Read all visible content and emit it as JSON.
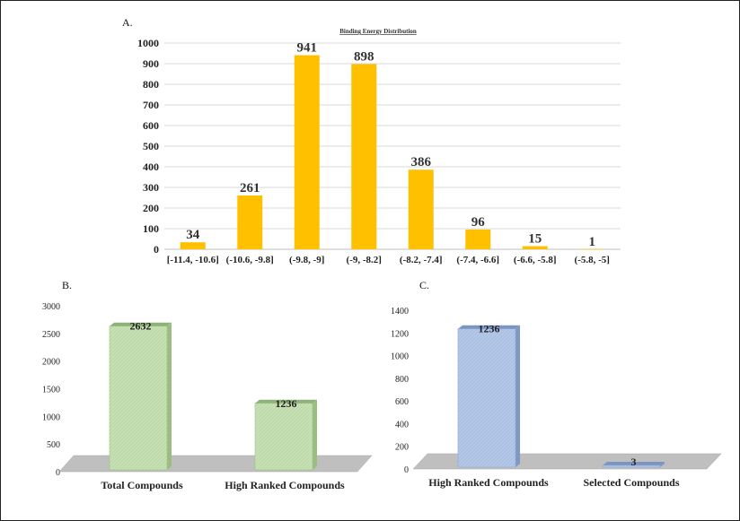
{
  "chart_data": [
    {
      "panel": "A.",
      "type": "bar",
      "title": "Binding Energy Distribution",
      "categories": [
        "[-11.4, -10.6]",
        "(-10.6, -9.8]",
        "(-9.8, -9]",
        "(-9, -8.2]",
        "(-8.2, -7.4]",
        "(-7.4, -6.6]",
        "(-6.6, -5.8]",
        "(-5.8, -5]"
      ],
      "values": [
        34,
        261,
        941,
        898,
        386,
        96,
        15,
        1
      ],
      "ylim": [
        0,
        1000
      ],
      "yticks": [
        0,
        100,
        200,
        300,
        400,
        500,
        600,
        700,
        800,
        900,
        1000
      ],
      "grid": true,
      "color": "#ffc000"
    },
    {
      "panel": "B.",
      "type": "bar",
      "categories": [
        "Total Compounds",
        "High Ranked Compounds"
      ],
      "values": [
        2632,
        1236
      ],
      "ylim": [
        0,
        3000
      ],
      "yticks": [
        0,
        500,
        1000,
        1500,
        2000,
        2500,
        3000
      ],
      "grid": false,
      "style": "3d",
      "color": "#c6e0b4"
    },
    {
      "panel": "C.",
      "type": "bar",
      "categories": [
        "High Ranked Compounds",
        "Selected Compounds"
      ],
      "values": [
        1236,
        3
      ],
      "ylim": [
        0,
        1400
      ],
      "yticks": [
        0,
        200,
        400,
        600,
        800,
        1000,
        1200,
        1400
      ],
      "grid": false,
      "style": "3d",
      "color": "#b4c7e7"
    }
  ]
}
